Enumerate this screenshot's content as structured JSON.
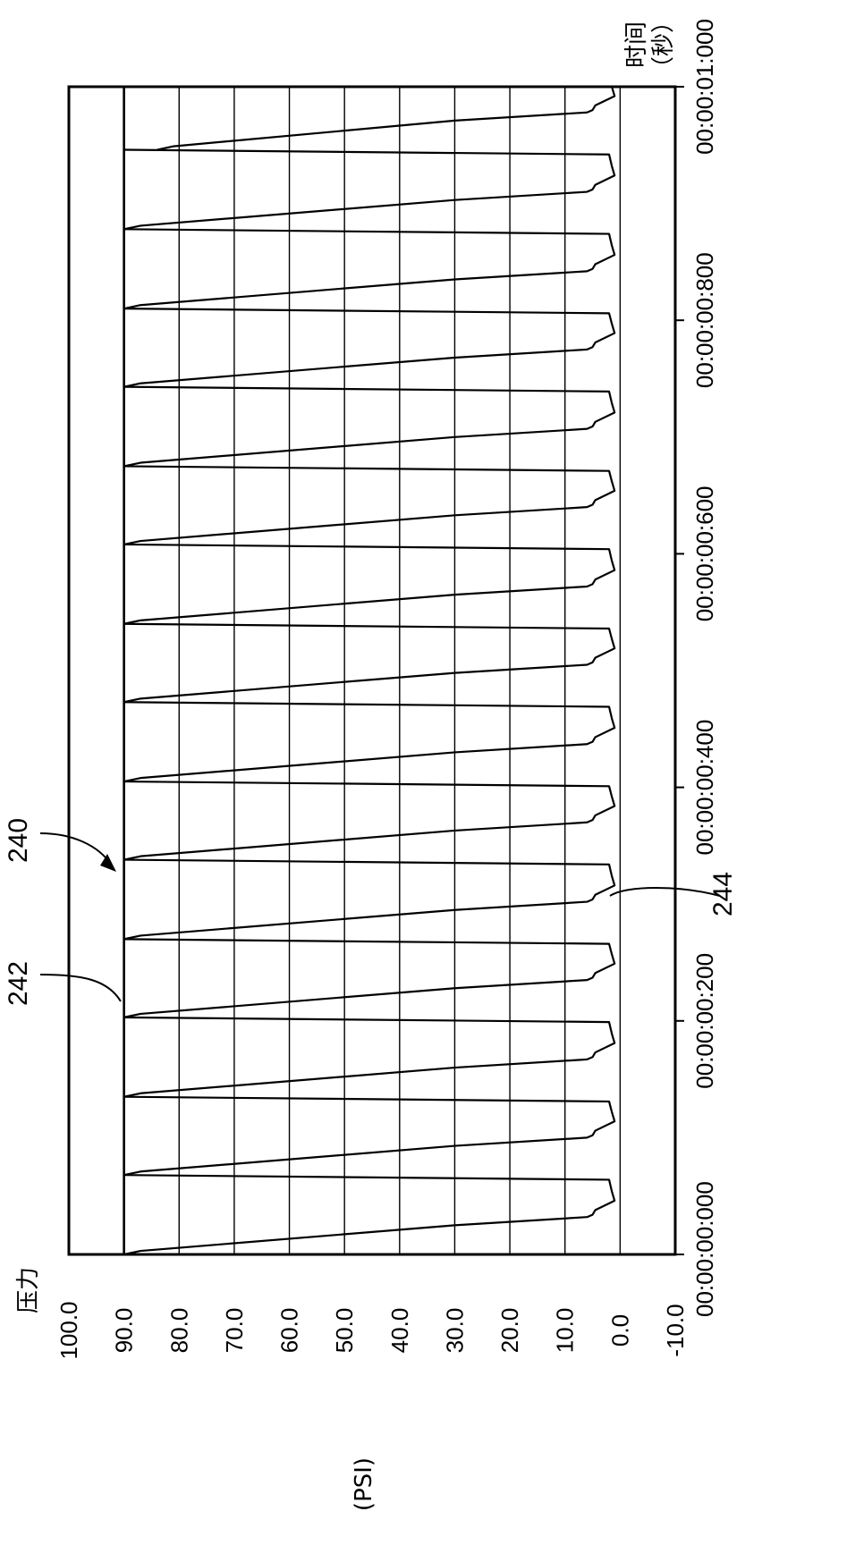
{
  "chart_data": {
    "type": "line",
    "orientation": "rotated-90-ccw",
    "y_axis": {
      "title": "压力",
      "unit": "(PSI)",
      "range": [
        -10.0,
        100.0
      ],
      "ticks": [
        "100.0",
        "90.0",
        "80.0",
        "70.0",
        "60.0",
        "50.0",
        "40.0",
        "30.0",
        "20.0",
        "10.0",
        "0.0",
        "-10.0"
      ]
    },
    "x_axis": {
      "title": "时间",
      "unit": "（秒）",
      "range": [
        0.0,
        1.0
      ],
      "ticks": [
        "00:00:00:000",
        "00:00:00:200",
        "00:00:00:400",
        "00:00:00:600",
        "00:00:00:800",
        "00:00:01:000"
      ]
    },
    "grid": true,
    "series": [
      {
        "pulse_starts_s": [
          0.0,
          0.068,
          0.135,
          0.203,
          0.27,
          0.338,
          0.405,
          0.473,
          0.54,
          0.608,
          0.675,
          0.743,
          0.81,
          0.878,
          0.946
        ],
        "peak_psi": 90.0,
        "plateau_psi": 5.0,
        "trough_psi": 1.0,
        "pulse_width_s": 0.034
      }
    ],
    "annotations": [
      {
        "label": "240",
        "target": "pulse train"
      },
      {
        "label": "242",
        "target": "pressure peak"
      },
      {
        "label": "244",
        "target": "pressure trough"
      }
    ]
  }
}
